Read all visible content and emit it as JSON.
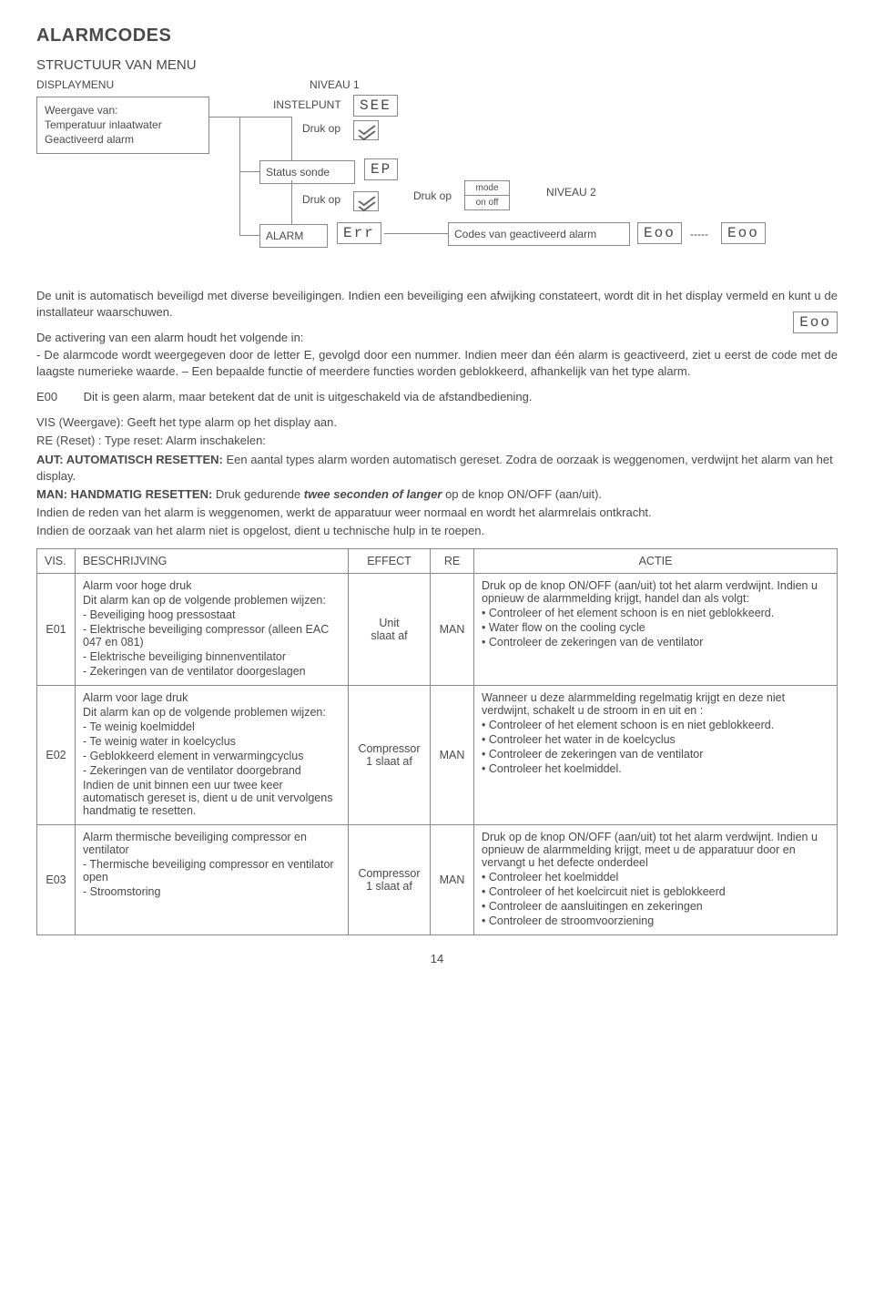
{
  "title": "ALARMCODES",
  "subtitle": "STRUCTUUR VAN MENU",
  "flow": {
    "displaymenu_label": "DISPLAYMENU",
    "niveau1": "NIVEAU 1",
    "niveau2": "NIVEAU 2",
    "display_box_l1": "Weergave van:",
    "display_box_l2": "Temperatuur inlaatwater",
    "display_box_l3": "Geactiveerd alarm",
    "instelpunt": "INSTELPUNT",
    "seg_set": "SEE",
    "status_sonde": "Status sonde",
    "seg_ep": "EP",
    "alarm": "ALARM",
    "seg_err": "Err",
    "druk_op": "Druk op",
    "mode": "mode",
    "onoff": "on off",
    "codes_line": "Codes van geactiveerd alarm",
    "seg_eoo": "Eoo",
    "dashes": "-----"
  },
  "para1": "De unit is automatisch beveiligd met diverse beveiligingen. Indien een beveiliging een afwijking constateert, wordt dit in het display vermeld en kunt u de installateur waarschuwen.",
  "para2": "De activering van een alarm houdt het volgende in:",
  "para3": "- De alarmcode wordt weergegeven door de letter E, gevolgd door een nummer. Indien meer dan één alarm is geactiveerd, ziet u eerst de code met de laagste numerieke waarde. – Een bepaalde functie of meerdere functies worden geblokkeerd, afhankelijk van het type alarm.",
  "e00_label": "E00",
  "e00_text": "Dit is geen alarm, maar betekent dat de unit is uitgeschakeld via de afstandbediening.",
  "reset": {
    "vis": "VIS (Weergave): Geeft het type alarm op het display aan.",
    "re": "RE (Reset) : Type reset: Alarm inschakelen:",
    "aut_bold": "AUT: AUTOMATISCH RESETTEN:",
    "aut_text": " Een aantal types alarm worden automatisch gereset. Zodra de oorzaak is weggenomen, verdwijnt het alarm van het display.",
    "man_bold": "MAN: HANDMATIG RESETTEN:",
    "man_text": " Druk gedurende ",
    "man_em": "twee seconden of langer",
    "man_text2": " op de knop ON/OFF (aan/uit).",
    "man_line2": "Indien de reden van het alarm is weggenomen, werkt de apparatuur weer normaal en wordt het alarmrelais ontkracht.",
    "man_line3": "Indien de oorzaak van het alarm niet is opgelost, dient u technische hulp in te roepen."
  },
  "table": {
    "headers": {
      "vis": "VIS.",
      "besch": "BESCHRIJVING",
      "effect": "EFFECT",
      "re": "RE",
      "actie": "ACTIE"
    },
    "rows": [
      {
        "vis": "E01",
        "besch_title": "Alarm voor hoge druk",
        "besch_sub": "Dit alarm kan op de volgende problemen wijzen:",
        "besch_items": [
          "- Beveiliging hoog pressostaat",
          "- Elektrische beveiliging compressor (alleen EAC 047 en 081)",
          "- Elektrische beveiliging binnenventilator",
          "- Zekeringen van de ventilator doorgeslagen"
        ],
        "effect_l1": "Unit",
        "effect_l2": "slaat af",
        "re": "MAN",
        "actie_intro": "Druk op de knop ON/OFF (aan/uit) tot het alarm verdwijnt. Indien u opnieuw de alarmmelding krijgt, handel dan als volgt:",
        "actie_items": [
          "• Controleer of het element schoon is en niet geblokkeerd.",
          "• Water flow on the cooling cycle",
          "• Controleer de zekeringen van de ventilator"
        ]
      },
      {
        "vis": "E02",
        "besch_title": "Alarm voor lage druk",
        "besch_sub": "Dit alarm kan op de volgende problemen wijzen:",
        "besch_items": [
          "- Te weinig koelmiddel",
          "- Te weinig water in koelcyclus",
          "- Geblokkeerd element in verwarmingcyclus",
          "- Zekeringen van de ventilator doorgebrand"
        ],
        "besch_tail": "Indien de unit binnen een uur twee keer automatisch gereset is, dient u de unit vervolgens handmatig te resetten.",
        "effect_l1": "Compressor",
        "effect_l2": "1 slaat af",
        "re": "MAN",
        "actie_intro": "Wanneer u deze alarmmelding regelmatig krijgt en deze niet verdwijnt, schakelt u de stroom in en uit en :",
        "actie_items": [
          "• Controleer of het element schoon is en niet geblokkeerd.",
          "• Controleer het water in de koelcyclus",
          "• Controleer de zekeringen van de ventilator",
          "• Controleer het koelmiddel."
        ]
      },
      {
        "vis": "E03",
        "besch_title": "Alarm thermische beveiliging compressor en ventilator",
        "besch_sub": "",
        "besch_items": [
          "- Thermische beveiliging compressor en ventilator open",
          "- Stroomstoring"
        ],
        "effect_l1": "Compressor",
        "effect_l2": "1 slaat af",
        "re": "MAN",
        "actie_intro": "Druk op de knop ON/OFF (aan/uit) tot het alarm verdwijnt. Indien u opnieuw de alarmmelding krijgt, meet u de apparatuur door en vervangt u het defecte onderdeel",
        "actie_items": [
          "• Controleer het koelmiddel",
          "• Controleer of het koelcircuit niet is geblokkeerd",
          "• Controleer de aansluitingen en zekeringen",
          "• Controleer de stroomvoorziening"
        ]
      }
    ]
  },
  "page_number": "14"
}
